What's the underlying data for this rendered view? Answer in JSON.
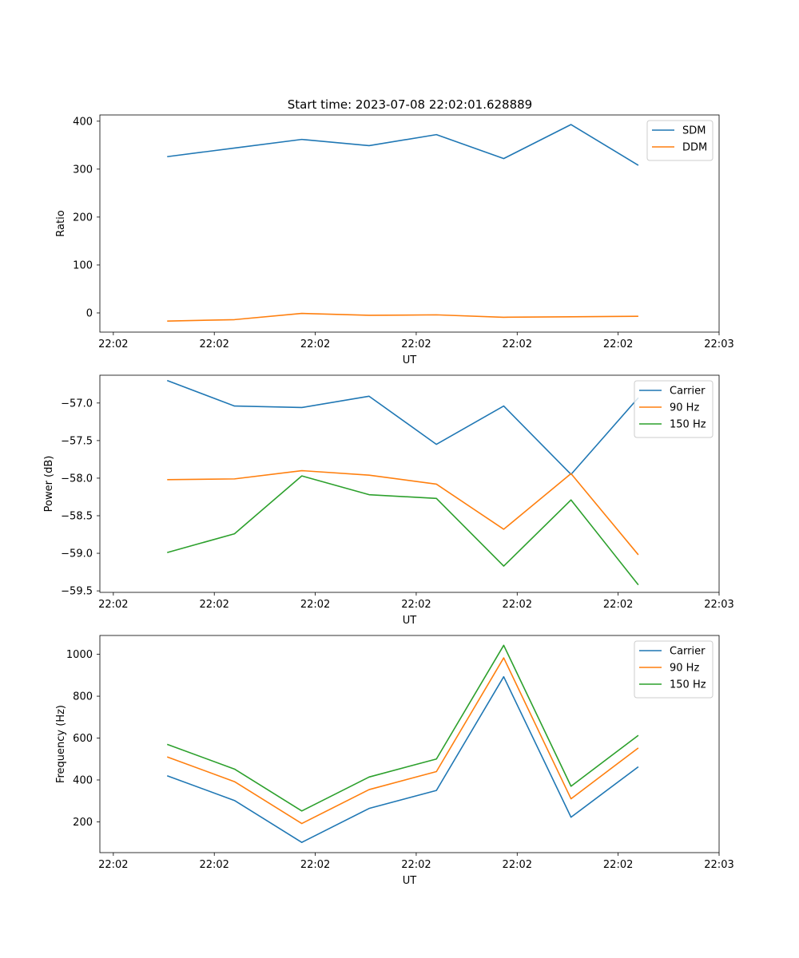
{
  "figure_title": "Start time: 2023-07-08 22:02:01.628889",
  "colors": {
    "c0": "#1f77b4",
    "c1": "#ff7f0e",
    "c2": "#2ca02c"
  },
  "chart_data": [
    {
      "type": "line",
      "title": "Start time: 2023-07-08 22:02:01.628889",
      "xlabel": "UT",
      "ylabel": "Ratio",
      "xlim": [
        0,
        9.2
      ],
      "ylim": [
        -40,
        413
      ],
      "x_ticks": [
        0.2,
        1.7,
        3.2,
        4.7,
        6.2,
        7.7,
        9.2
      ],
      "x_tick_labels": [
        "22:02",
        "22:02",
        "22:02",
        "22:02",
        "22:02",
        "22:02",
        "22:03"
      ],
      "y_ticks": [
        0,
        100,
        200,
        300,
        400
      ],
      "y_tick_labels": [
        "0",
        "100",
        "200",
        "300",
        "400"
      ],
      "legend_position": "top-right",
      "x": [
        1,
        2,
        3,
        4,
        5,
        6,
        7,
        8
      ],
      "series": [
        {
          "name": "SDM",
          "color": "#1f77b4",
          "values": [
            326,
            344,
            362,
            349,
            372,
            322,
            393,
            308
          ]
        },
        {
          "name": "DDM",
          "color": "#ff7f0e",
          "values": [
            -17,
            -14,
            -1,
            -5,
            -4,
            -9,
            -8,
            -7
          ]
        }
      ]
    },
    {
      "type": "line",
      "title": "",
      "xlabel": "UT",
      "ylabel": "Power (dB)",
      "xlim": [
        0,
        9.2
      ],
      "ylim": [
        -59.52,
        -56.63
      ],
      "x_ticks": [
        0.2,
        1.7,
        3.2,
        4.7,
        6.2,
        7.7,
        9.2
      ],
      "x_tick_labels": [
        "22:02",
        "22:02",
        "22:02",
        "22:02",
        "22:02",
        "22:02",
        "22:03"
      ],
      "y_ticks": [
        -57.0,
        -57.5,
        -58.0,
        -58.5,
        -59.0,
        -59.5
      ],
      "y_tick_labels": [
        "−57.0",
        "−57.5",
        "−58.0",
        "−58.5",
        "−59.0",
        "−59.5"
      ],
      "legend_position": "top-right",
      "x": [
        1,
        2,
        3,
        4,
        5,
        6,
        7,
        8
      ],
      "series": [
        {
          "name": "Carrier",
          "color": "#1f77b4",
          "values": [
            -56.7,
            -57.04,
            -57.06,
            -56.91,
            -57.55,
            -57.04,
            -57.95,
            -56.93
          ]
        },
        {
          "name": "90 Hz",
          "color": "#ff7f0e",
          "values": [
            -58.02,
            -58.01,
            -57.9,
            -57.96,
            -58.08,
            -58.68,
            -57.94,
            -59.02
          ]
        },
        {
          "name": "150 Hz",
          "color": "#2ca02c",
          "values": [
            -58.99,
            -58.74,
            -57.97,
            -58.22,
            -58.27,
            -59.17,
            -58.29,
            -59.42
          ]
        }
      ]
    },
    {
      "type": "line",
      "title": "",
      "xlabel": "UT",
      "ylabel": "Frequency (Hz)",
      "xlim": [
        0,
        9.2
      ],
      "ylim": [
        53,
        1090
      ],
      "x_ticks": [
        0.2,
        1.7,
        3.2,
        4.7,
        6.2,
        7.7,
        9.2
      ],
      "x_tick_labels": [
        "22:02",
        "22:02",
        "22:02",
        "22:02",
        "22:02",
        "22:02",
        "22:03"
      ],
      "y_ticks": [
        200,
        400,
        600,
        800,
        1000
      ],
      "y_tick_labels": [
        "200",
        "400",
        "600",
        "800",
        "1000"
      ],
      "legend_position": "top-right",
      "x": [
        1,
        2,
        3,
        4,
        5,
        6,
        7,
        8
      ],
      "series": [
        {
          "name": "Carrier",
          "color": "#1f77b4",
          "values": [
            420,
            302,
            102,
            264,
            350,
            893,
            222,
            463
          ]
        },
        {
          "name": "90 Hz",
          "color": "#ff7f0e",
          "values": [
            510,
            392,
            192,
            354,
            440,
            983,
            310,
            553
          ]
        },
        {
          "name": "150 Hz",
          "color": "#2ca02c",
          "values": [
            570,
            452,
            252,
            414,
            500,
            1043,
            370,
            613
          ]
        }
      ]
    }
  ]
}
